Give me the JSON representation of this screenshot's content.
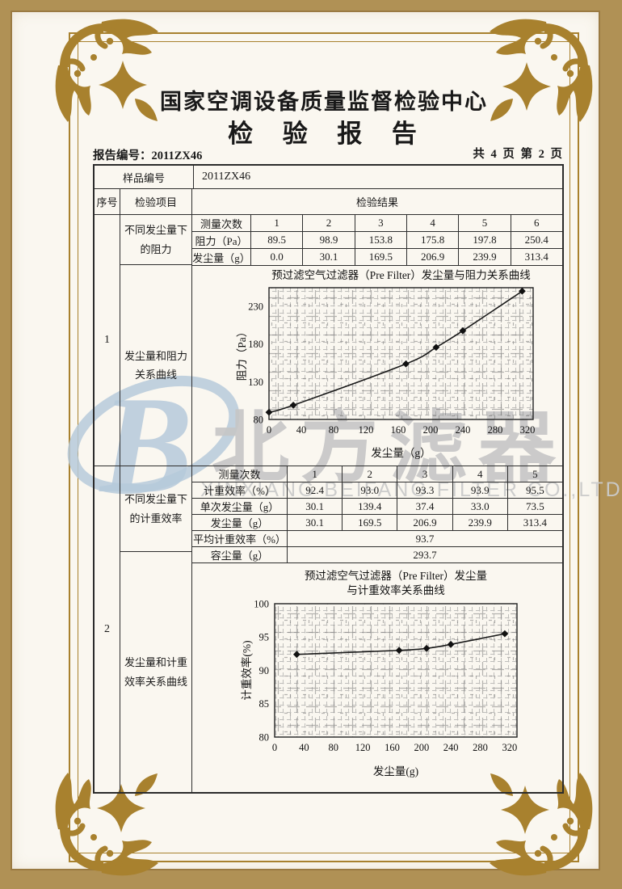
{
  "doc": {
    "header": {
      "center_name": "国家空调设备质量监督检验中心",
      "report_title": "检 验 报 告"
    },
    "meta": {
      "report_no": "报告编号：2011ZX46",
      "page_info": "共 4 页 第 2 页"
    },
    "sample": {
      "label": "样品编号",
      "value": "2011ZX46"
    },
    "col_headers": {
      "seq": "序号",
      "item": "检验项目",
      "result": "检验结果"
    },
    "sections": [
      {
        "seq": "1",
        "item_top": "不同发尘量下的阻力",
        "item_bottom": "发尘量和阻力关系曲线",
        "measure_table": {
          "rows": [
            {
              "label": "测量次数",
              "values": [
                "1",
                "2",
                "3",
                "4",
                "5",
                "6"
              ]
            },
            {
              "label": "阻力（Pa）",
              "values": [
                "89.5",
                "98.9",
                "153.8",
                "175.8",
                "197.8",
                "250.4"
              ]
            },
            {
              "label": "发尘量（g）",
              "values": [
                "0.0",
                "30.1",
                "169.5",
                "206.9",
                "239.9",
                "313.4"
              ]
            }
          ]
        }
      },
      {
        "seq": "2",
        "item_top": "不同发尘量下的计重效率",
        "item_bottom": "发尘量和计重效率关系曲线",
        "measure_table": {
          "rows": [
            {
              "label": "测量次数",
              "values": [
                "1",
                "2",
                "3",
                "4",
                "5"
              ]
            },
            {
              "label": "计重效率（%）",
              "values": [
                "92.4",
                "93.0",
                "93.3",
                "93.9",
                "95.5"
              ]
            },
            {
              "label": "单次发尘量（g）",
              "values": [
                "30.1",
                "139.4",
                "37.4",
                "33.0",
                "73.5"
              ]
            },
            {
              "label": "发尘量（g）",
              "values": [
                "30.1",
                "169.5",
                "206.9",
                "239.9",
                "313.4"
              ]
            }
          ],
          "summary_rows": [
            {
              "label": "平均计重效率（%）",
              "value": "93.7"
            },
            {
              "label": "容尘量（g）",
              "value": "293.7"
            }
          ]
        }
      }
    ]
  },
  "watermark": {
    "logo_letter": "B",
    "cn_text": "北方滤器",
    "en_text": "XINXIANG BEIFANG FILTER CO.,LTD",
    "blue": "#b6cadb",
    "gray": "#c6c6c6"
  },
  "colors": {
    "band": "#b09155",
    "paper": "#faf7f0",
    "frame_gold": "#a8812e",
    "ink": "#191919",
    "table_line": "#2e2e2e"
  },
  "chart_data": [
    {
      "type": "line",
      "title": "预过滤空气过滤器（Pre Filter）发尘量与阻力关系曲线",
      "title_lines": [
        "预过滤空气过滤器（Pre Filter）发尘量与阻力关系曲线"
      ],
      "xlabel": "发尘量（g）",
      "ylabel": "阻力（Pa）",
      "x": [
        0,
        30.1,
        169.5,
        206.9,
        239.9,
        313.4
      ],
      "y": [
        89.5,
        98.9,
        153.8,
        175.8,
        197.8,
        250.4
      ],
      "xlim": [
        0,
        327
      ],
      "ylim": [
        80,
        255
      ],
      "xticks": [
        0,
        40,
        80,
        120,
        160,
        200,
        240,
        280,
        320
      ],
      "yticks": [
        80,
        130,
        180,
        230
      ],
      "grid": true,
      "legend": "none",
      "marker": "diamond"
    },
    {
      "type": "line",
      "title": "预过滤空气过滤器（Pre Filter）发尘量与计重效率关系曲线",
      "title_lines": [
        "预过滤空气过滤器（Pre Filter）发尘量",
        "与计重效率关系曲线"
      ],
      "xlabel": "发尘量(g)",
      "ylabel": "计重效率(%)",
      "x": [
        30.1,
        169.5,
        206.9,
        239.9,
        313.4
      ],
      "y": [
        92.4,
        93.0,
        93.3,
        93.9,
        95.5
      ],
      "xlim": [
        0,
        330
      ],
      "ylim": [
        80,
        100
      ],
      "xticks": [
        0,
        40,
        80,
        120,
        160,
        200,
        240,
        280,
        320
      ],
      "yticks": [
        80,
        85,
        90,
        95,
        100
      ],
      "grid": true,
      "legend": "none",
      "marker": "diamond"
    }
  ]
}
